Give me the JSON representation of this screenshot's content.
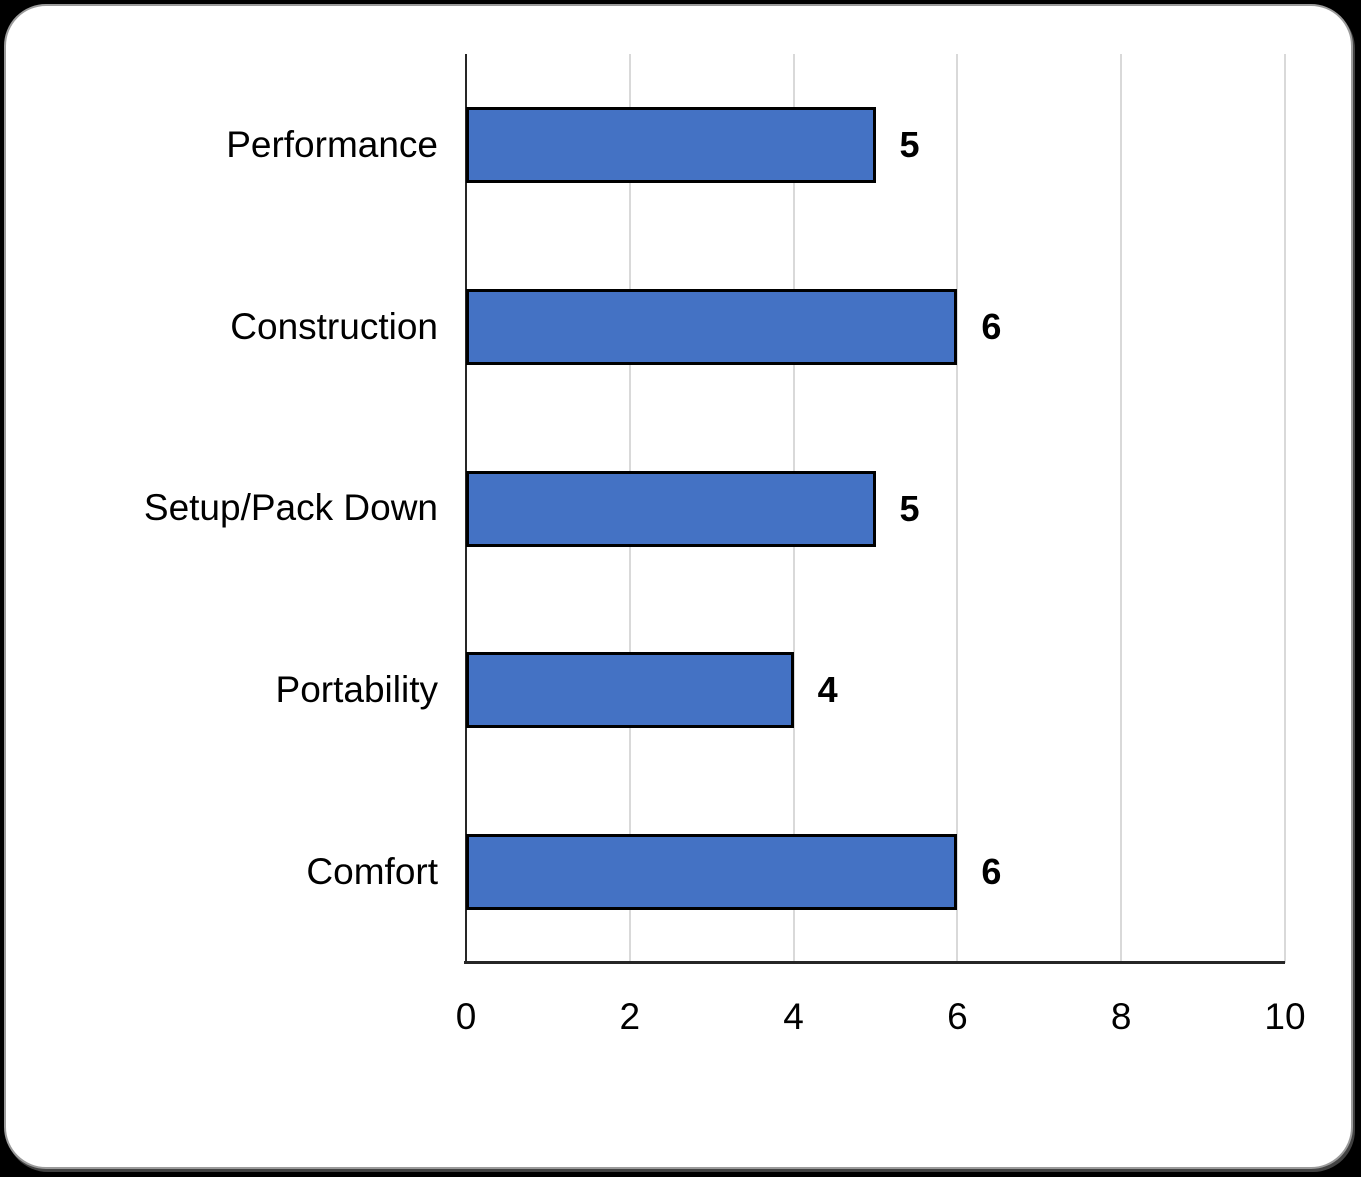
{
  "card": {
    "background": "#ffffff",
    "border_color": "#9b9b9b",
    "page_background": "#000000"
  },
  "chart_data": {
    "type": "bar",
    "orientation": "horizontal",
    "title": "",
    "xlabel": "",
    "ylabel": "",
    "categories": [
      "Performance",
      "Construction",
      "Setup/Pack Down",
      "Portability",
      "Comfort"
    ],
    "values": [
      5,
      6,
      5,
      4,
      6
    ],
    "data_labels": [
      "5",
      "6",
      "5",
      "4",
      "6"
    ],
    "xlim": [
      0,
      10
    ],
    "x_ticks": [
      "0",
      "2",
      "4",
      "6",
      "8",
      "10"
    ],
    "grid": true,
    "legend": false,
    "colors": {
      "bar_fill": "#4472C4",
      "bar_border": "#000000",
      "gridline": "#D9D9D9",
      "axis_line": "#262626",
      "text": "#000000"
    }
  }
}
